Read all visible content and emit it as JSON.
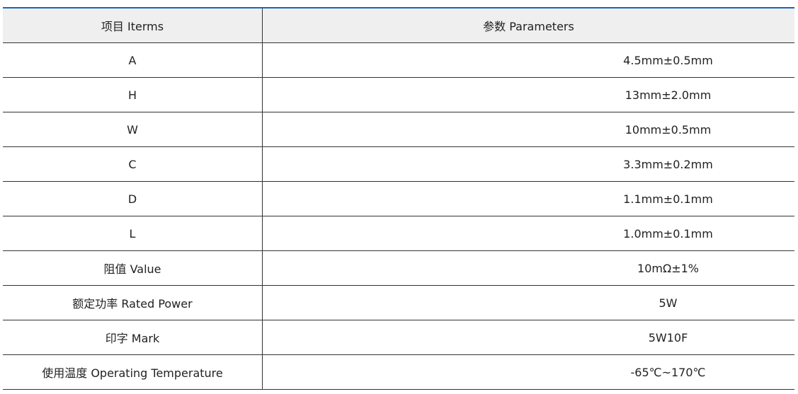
{
  "table": {
    "headers": [
      "项目 Iterms",
      "参数 Parameters"
    ],
    "rows": [
      [
        "A",
        "4.5mm±0.5mm"
      ],
      [
        "H",
        "13mm±2.0mm"
      ],
      [
        "W",
        "10mm±0.5mm"
      ],
      [
        "C",
        "3.3mm±0.2mm"
      ],
      [
        "D",
        "1.1mm±0.1mm"
      ],
      [
        "L",
        "1.0mm±0.1mm"
      ],
      [
        "阻值 Value",
        "10mΩ±1%"
      ],
      [
        "额定功率 Rated Power",
        "5W"
      ],
      [
        "印字 Mark",
        "5W10F"
      ],
      [
        "使用温度 Operating Temperature",
        "-65℃~170℃"
      ]
    ],
    "accent_color": "#1a63c2",
    "header_bg": "#efefef"
  }
}
